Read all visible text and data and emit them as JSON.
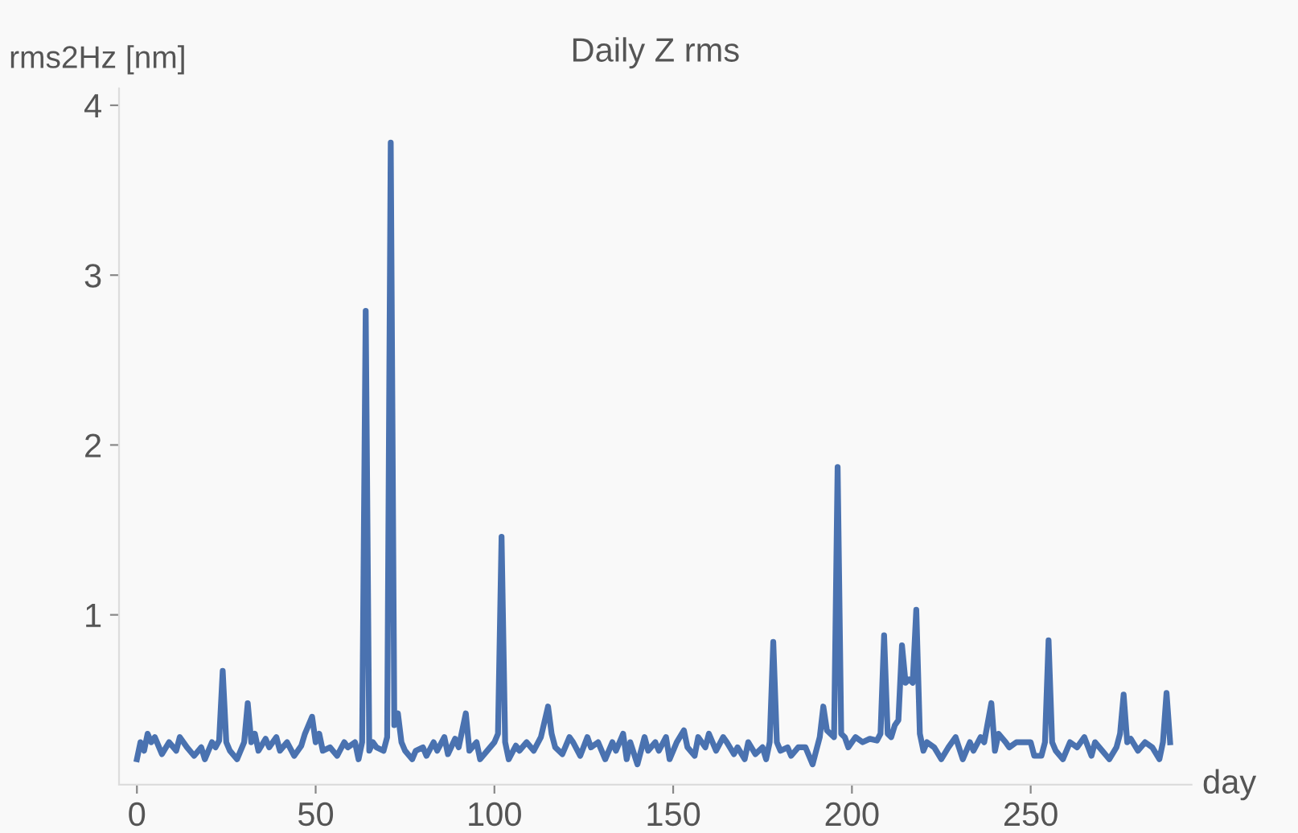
{
  "chart_data": {
    "type": "line",
    "title": "Daily Z rms",
    "xlabel": "day",
    "ylabel": "rms2Hz [nm]",
    "xlim": [
      -5,
      295
    ],
    "xticks": [
      0,
      50,
      100,
      150,
      200,
      250
    ],
    "ylim": [
      0,
      4.1
    ],
    "yticks": [
      1,
      2,
      3,
      4
    ],
    "grid": false,
    "marker": "none",
    "line_style": "solid",
    "series": [
      {
        "color": "#4a72b0",
        "x": [
          0,
          1,
          2,
          3,
          4,
          5,
          7,
          9,
          11,
          12,
          14,
          16,
          18,
          19,
          21,
          22,
          23,
          24,
          25,
          26,
          28,
          30,
          31,
          32,
          33,
          34,
          36,
          37,
          39,
          40,
          42,
          44,
          46,
          47,
          49,
          50,
          51,
          52,
          54,
          56,
          58,
          59,
          61,
          62,
          63,
          64,
          65,
          66,
          67,
          69,
          70,
          71,
          72,
          73,
          74,
          75,
          77,
          78,
          80,
          81,
          83,
          84,
          86,
          87,
          89,
          90,
          92,
          93,
          95,
          96,
          98,
          100,
          101,
          102,
          103,
          104,
          106,
          107,
          109,
          111,
          113,
          115,
          116,
          117,
          119,
          121,
          122,
          124,
          126,
          127,
          129,
          131,
          133,
          134,
          136,
          137,
          138,
          140,
          142,
          143,
          145,
          146,
          148,
          149,
          151,
          153,
          154,
          156,
          157,
          159,
          160,
          162,
          164,
          165,
          167,
          168,
          170,
          171,
          173,
          175,
          176,
          177,
          178,
          179,
          180,
          182,
          183,
          185,
          187,
          189,
          191,
          192,
          193,
          194,
          195,
          196,
          197,
          198,
          199,
          201,
          203,
          205,
          207,
          208,
          209,
          210,
          211,
          212,
          213,
          214,
          215,
          216,
          217,
          218,
          219,
          220,
          221,
          223,
          225,
          227,
          229,
          231,
          233,
          234,
          236,
          237,
          239,
          240,
          241,
          243,
          244,
          246,
          248,
          250,
          251,
          253,
          254,
          255,
          256,
          257,
          259,
          261,
          263,
          265,
          267,
          268,
          270,
          272,
          274,
          275,
          276,
          277,
          278,
          280,
          282,
          284,
          286,
          287,
          288,
          289
        ],
        "values": [
          0.15,
          0.25,
          0.2,
          0.3,
          0.25,
          0.28,
          0.18,
          0.25,
          0.2,
          0.28,
          0.22,
          0.17,
          0.22,
          0.15,
          0.25,
          0.22,
          0.26,
          0.67,
          0.25,
          0.2,
          0.15,
          0.25,
          0.48,
          0.25,
          0.3,
          0.2,
          0.27,
          0.22,
          0.28,
          0.2,
          0.25,
          0.17,
          0.23,
          0.3,
          0.4,
          0.25,
          0.3,
          0.2,
          0.22,
          0.17,
          0.25,
          0.22,
          0.25,
          0.15,
          0.25,
          2.79,
          0.2,
          0.25,
          0.22,
          0.2,
          0.28,
          3.78,
          0.35,
          0.42,
          0.25,
          0.2,
          0.15,
          0.2,
          0.22,
          0.17,
          0.25,
          0.2,
          0.28,
          0.18,
          0.27,
          0.22,
          0.42,
          0.2,
          0.25,
          0.15,
          0.2,
          0.25,
          0.3,
          1.46,
          0.25,
          0.15,
          0.23,
          0.2,
          0.25,
          0.2,
          0.28,
          0.46,
          0.3,
          0.22,
          0.18,
          0.28,
          0.25,
          0.17,
          0.28,
          0.22,
          0.25,
          0.15,
          0.25,
          0.2,
          0.3,
          0.15,
          0.25,
          0.12,
          0.28,
          0.2,
          0.25,
          0.2,
          0.28,
          0.15,
          0.25,
          0.32,
          0.22,
          0.17,
          0.28,
          0.22,
          0.3,
          0.2,
          0.28,
          0.25,
          0.18,
          0.22,
          0.15,
          0.25,
          0.18,
          0.22,
          0.15,
          0.25,
          0.84,
          0.25,
          0.2,
          0.22,
          0.17,
          0.22,
          0.22,
          0.12,
          0.28,
          0.46,
          0.32,
          0.3,
          0.28,
          1.87,
          0.3,
          0.28,
          0.22,
          0.28,
          0.25,
          0.27,
          0.26,
          0.3,
          0.88,
          0.3,
          0.28,
          0.35,
          0.38,
          0.82,
          0.6,
          0.62,
          0.6,
          1.03,
          0.3,
          0.2,
          0.25,
          0.22,
          0.15,
          0.22,
          0.28,
          0.15,
          0.25,
          0.2,
          0.28,
          0.25,
          0.48,
          0.2,
          0.3,
          0.25,
          0.22,
          0.25,
          0.25,
          0.25,
          0.17,
          0.17,
          0.25,
          0.85,
          0.25,
          0.2,
          0.15,
          0.25,
          0.22,
          0.28,
          0.17,
          0.25,
          0.2,
          0.15,
          0.22,
          0.3,
          0.53,
          0.25,
          0.27,
          0.2,
          0.25,
          0.22,
          0.15,
          0.25,
          0.54,
          0.25
        ]
      }
    ]
  }
}
